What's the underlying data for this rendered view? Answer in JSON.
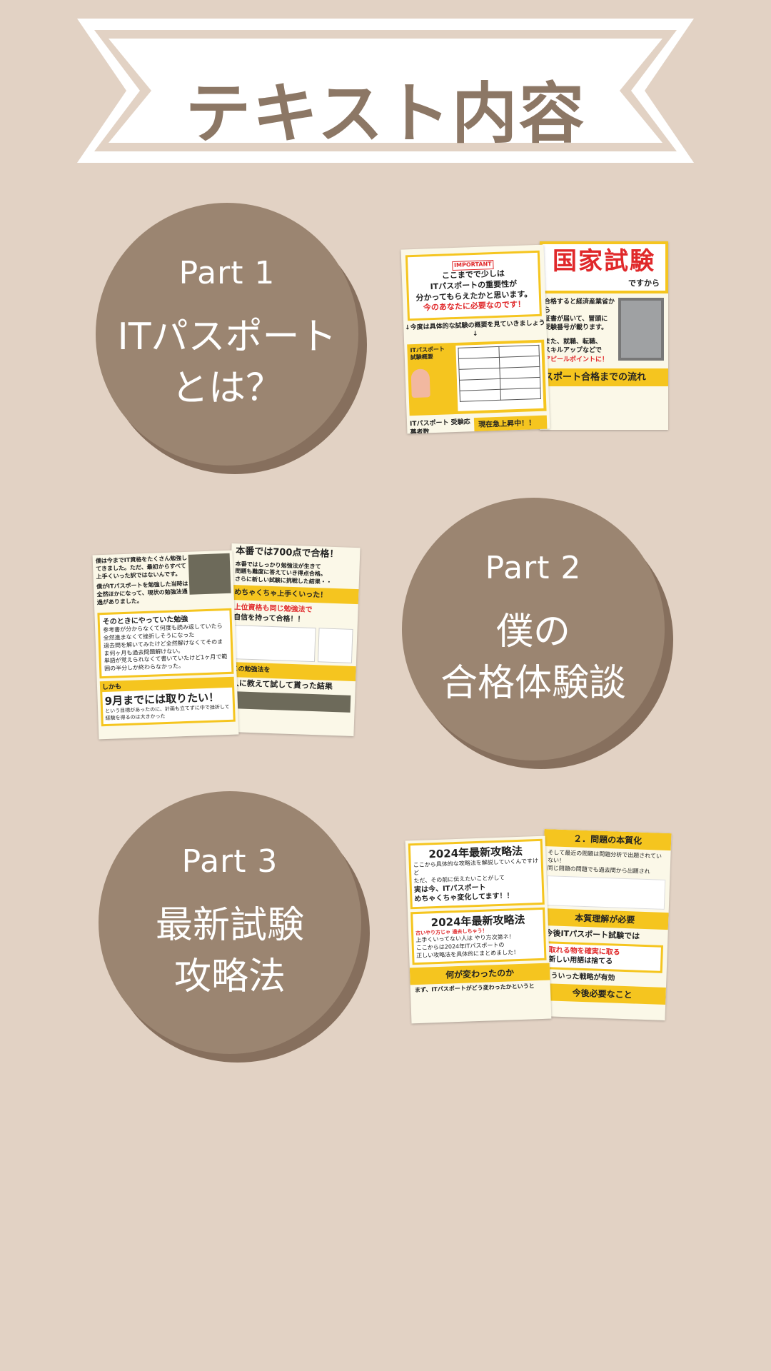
{
  "banner": {
    "title": "テキスト内容"
  },
  "parts": [
    {
      "label": "Part 1",
      "title": "ITパスポート\nとは？"
    },
    {
      "label": "Part 2",
      "title": "僕の\n合格体験談"
    },
    {
      "label": "Part 3",
      "title": "最新試験\n攻略法"
    }
  ],
  "collage1": {
    "left": {
      "badge": "IMPORTANT",
      "lines": [
        "ここまでで少しは",
        "ITパスポートの重要性が",
        "分かってもらえたかと思います。",
        "今のあなたに必要なのです！",
        "↓今度は具体的な試験の概要を見ていきましょう↓"
      ],
      "section": "ITパスポート試験概要",
      "bottom_left": "ITパスポート 受験応募者数",
      "bottom_right": "現在急上昇中！！"
    },
    "right": {
      "big": "国家試験",
      "suffix": "ですから",
      "lines": [
        "合格すると経済産業省から",
        "証書が届いて、冒頭に",
        "受験番号が載ります。",
        "また、就職、転職、",
        "スキルアップなどで",
        "アピールポイントに！"
      ],
      "band": "スポート合格までの流れ"
    }
  },
  "collage2": {
    "left": {
      "intro": [
        "僕は今までIT資格をたくさん勉強してきました。ただ、最初からすべて上手くいった訳ではないんです。",
        "僕がITパスポートを勉強した当時は全然ほかになって、現状の勉強法通過がありました。"
      ],
      "section": "そのときにやっていた勉強",
      "bullets": [
        "参考書が分からなくて何度も読み返していたら全然進まなくて挫折しそうになった",
        "過去問を解いてみたけど全然解けなくてそのまま何ヶ月も過去問題解けない。",
        "単語が覚えられなくて書いていたけど1ヶ月で範囲の半分しか終わらなかった。"
      ],
      "band": "しかも",
      "big": "9月までには取りたい！",
      "note": "という目標があったのに、計画も立てずに中で挫折して経験を得るのは大きかった"
    },
    "right": {
      "top": "本番では700点で合格！",
      "top_text": [
        "本番ではしっかり勉強法が生きて",
        "問題も難度に答えていき得点合格。",
        "さらに新しい試験に挑戦した結果・・"
      ],
      "band1": "めちゃくちゃ上手くいった！",
      "sub1": "上位資格も同じ勉強法で",
      "sub2": "自信を持って合格！！",
      "band2": "この勉強法を",
      "band3": "人に教えて試して貰った結果"
    }
  },
  "collage3": {
    "left": {
      "title1": "2024年最新攻略法",
      "lines1": [
        "ここから具体的な攻略法を解説していくんですけど",
        "ただ、その前に伝えたいことがして",
        "実は今、ITパスポート",
        "めちゃくちゃ変化してます！！"
      ],
      "title2": "2024年最新攻略法",
      "bubble": "古いやり方じゃ 過去しちゃう！",
      "lines2": [
        "上手くいってない人は やり方次第ネ！",
        "ここからは2024年ITパスポートの",
        "正しい攻略法を具体的にまとめました！"
      ],
      "band": "何が変わったのか",
      "bottom": "まず、ITパスポートがどう変わったかというと"
    },
    "right": {
      "band1": "２．問題の本質化",
      "lines1": [
        "そして最近の問題は問題分析で出題されていない！",
        "同じ問題の問題でも過去問から出題され"
      ],
      "band2": "本質理解が必要",
      "sub": "今後ITパスポート試験では",
      "bullets": [
        "取れる物を確実に取る",
        "新しい用語は捨てる"
      ],
      "sub2": "こういった戦略が有効",
      "band3": "今後必要なこと"
    }
  }
}
